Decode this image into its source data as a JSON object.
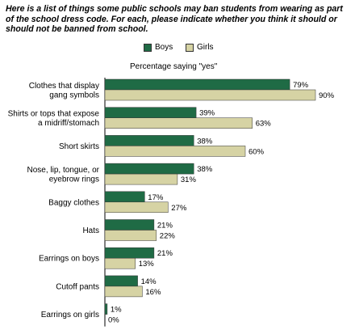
{
  "question": "Here is a list of things some public schools may ban students from wearing as part of the school dress code. For each, please indicate whether you think it should or should not be banned from school.",
  "chart_data": {
    "type": "bar",
    "orientation": "horizontal",
    "title": "Percentage saying \"yes\"",
    "categories": [
      [
        "Clothes that display",
        "gang symbols"
      ],
      [
        "Shirts or tops that expose",
        "a midriff/stomach"
      ],
      [
        "Short skirts"
      ],
      [
        "Nose, lip, tongue, or",
        "eyebrow rings"
      ],
      [
        "Baggy clothes"
      ],
      [
        "Hats"
      ],
      [
        "Earrings on boys"
      ],
      [
        "Cutoff pants"
      ],
      [
        "Earrings on girls"
      ]
    ],
    "series": [
      {
        "name": "Boys",
        "color": "#1f6b45",
        "values": [
          79,
          39,
          38,
          38,
          17,
          21,
          21,
          14,
          1
        ]
      },
      {
        "name": "Girls",
        "color": "#d6d3a4",
        "values": [
          90,
          63,
          60,
          31,
          27,
          22,
          13,
          16,
          0
        ]
      }
    ],
    "value_suffix": "%",
    "xlim": [
      0,
      100
    ],
    "legend_position": "top",
    "grid": false
  }
}
